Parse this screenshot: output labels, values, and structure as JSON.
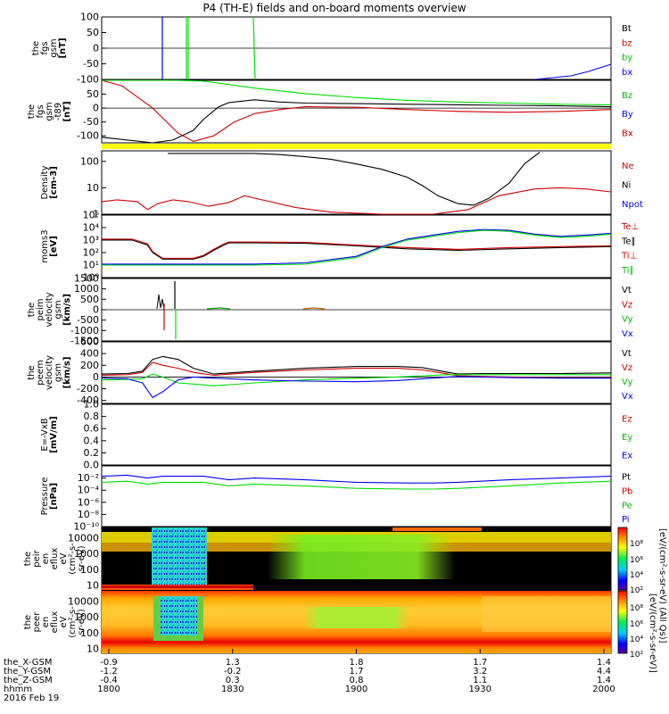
{
  "title": "P4 (TH-E) fields and on-board moments overview",
  "ephemeris": {
    "rows": [
      {
        "label": "the_X-GSM",
        "values": [
          "-0.9",
          "1.3",
          "1.8",
          "1.7",
          "1.4"
        ]
      },
      {
        "label": "the_Y-GSM",
        "values": [
          "-1.2",
          "-0.2",
          "1.7",
          "3.2",
          "4.4"
        ]
      },
      {
        "label": "the_Z-GSM",
        "values": [
          "-0.4",
          "0.3",
          "0.8",
          "1.1",
          "1.4"
        ]
      },
      {
        "label": "hhmm",
        "values": [
          "1800",
          "1830",
          "1900",
          "1930",
          "2000"
        ]
      }
    ],
    "date": "2016 Feb 19"
  },
  "colors": {
    "black": "#000000",
    "red": "#cc0000",
    "green": "#00dd00",
    "blue": "#0000ff",
    "yellow": "#ffff00"
  },
  "chart_data": [
    {
      "type": "line",
      "ylabel": [
        "the",
        "fgs",
        "gsm",
        "[nT]"
      ],
      "yticks": [
        "100",
        "50",
        "0",
        "-50",
        "-100"
      ],
      "ylim": [
        -100,
        100
      ],
      "legend": [
        "Bt",
        "bz",
        "by",
        "bx"
      ]
    },
    {
      "type": "line",
      "ylabel": [
        "the",
        "fgs",
        "gsm",
        "-t89",
        "[nT]"
      ],
      "yticks": [
        "50",
        "0",
        "-50",
        "-100"
      ],
      "ylim": [
        -125,
        100
      ],
      "legend": [
        "Bz",
        "By",
        "Bx"
      ],
      "series": [
        {
          "color": "black",
          "x": [
            0,
            0.1,
            0.14,
            0.18,
            0.2,
            0.23,
            0.25,
            0.3,
            0.35,
            0.4,
            0.5,
            0.6,
            0.7,
            0.8,
            0.9,
            1
          ],
          "y": [
            -105,
            -125,
            -115,
            -80,
            -40,
            5,
            20,
            30,
            22,
            18,
            16,
            14,
            12,
            10,
            8,
            5
          ]
        },
        {
          "color": "red",
          "x": [
            0,
            0.04,
            0.1,
            0.15,
            0.18,
            0.22,
            0.26,
            0.3,
            0.35,
            0.4,
            0.5,
            0.6,
            0.7,
            0.8,
            0.9,
            1
          ],
          "y": [
            100,
            80,
            0,
            -90,
            -120,
            -100,
            -50,
            -20,
            -5,
            5,
            3,
            -5,
            -12,
            -15,
            -12,
            -5
          ]
        },
        {
          "color": "green",
          "x": [
            0,
            0.05,
            0.1,
            0.15,
            0.2,
            0.25,
            0.3,
            0.4,
            0.5,
            0.6,
            0.7,
            0.8,
            0.9,
            1
          ],
          "y": [
            100,
            100,
            100,
            100,
            97,
            85,
            72,
            52,
            38,
            28,
            22,
            18,
            14,
            12
          ]
        }
      ]
    },
    {
      "type": "line",
      "ylabel": [
        "Density",
        "[cm-3]"
      ],
      "yscale": "log",
      "ytick_values": [
        1,
        10,
        100
      ],
      "yticks": [
        "1",
        "10",
        "100"
      ],
      "ylim": [
        1,
        250
      ],
      "legend": [
        "Ne",
        "Ni",
        "Npot"
      ],
      "series": [
        {
          "color": "black",
          "x": [
            0.13,
            0.3,
            0.35,
            0.4,
            0.45,
            0.5,
            0.55,
            0.6,
            0.63,
            0.66,
            0.7,
            0.73,
            0.76,
            0.8,
            0.83,
            0.86
          ],
          "y": [
            200,
            200,
            180,
            150,
            120,
            80,
            50,
            25,
            12,
            5,
            2.5,
            2.2,
            4,
            15,
            80,
            220
          ]
        },
        {
          "color": "red",
          "x": [
            0,
            0.03,
            0.07,
            0.09,
            0.11,
            0.14,
            0.17,
            0.21,
            0.25,
            0.28,
            0.33,
            0.38,
            0.45,
            0.55,
            0.65,
            0.72,
            0.78,
            0.85,
            0.9,
            0.95,
            1
          ],
          "y": [
            3,
            3.5,
            3,
            1.5,
            2.5,
            3.5,
            3,
            2,
            2.8,
            5,
            3,
            1.8,
            1.2,
            1,
            1,
            1.5,
            5,
            9,
            10,
            9,
            7
          ]
        }
      ]
    },
    {
      "type": "line",
      "ylabel": [
        "moms3",
        "[eV]"
      ],
      "yscale": "log",
      "ytick_values": [
        1,
        10,
        100,
        1000,
        10000,
        100000
      ],
      "yticks": [
        "10⁰",
        "10¹",
        "10²",
        "10³",
        "10⁴",
        "10⁵"
      ],
      "ylim": [
        1,
        100000
      ],
      "legend": [
        "Te⊥",
        "Te∥",
        "Ti⊥",
        "Ti∥"
      ],
      "series": [
        {
          "color": "black",
          "x": [
            0,
            0.06,
            0.09,
            0.1,
            0.12,
            0.18,
            0.2,
            0.22,
            0.24,
            0.25,
            0.3,
            0.4,
            0.5,
            0.6,
            0.7,
            0.8,
            0.9,
            1
          ],
          "y": [
            1000,
            1000,
            400,
            100,
            30,
            30,
            50,
            150,
            400,
            600,
            600,
            550,
            350,
            200,
            150,
            200,
            250,
            300
          ]
        },
        {
          "color": "red",
          "x": [
            0,
            0.06,
            0.09,
            0.1,
            0.12,
            0.18,
            0.2,
            0.22,
            0.24,
            0.25,
            0.3,
            0.4,
            0.5,
            0.6,
            0.7,
            0.8,
            0.9,
            1
          ],
          "y": [
            1200,
            1200,
            500,
            120,
            35,
            35,
            60,
            180,
            500,
            700,
            700,
            650,
            400,
            250,
            180,
            250,
            300,
            350
          ]
        },
        {
          "color": "blue",
          "x": [
            0,
            0.1,
            0.22,
            0.3,
            0.4,
            0.5,
            0.55,
            0.6,
            0.65,
            0.7,
            0.75,
            0.8,
            0.85,
            0.9,
            0.95,
            1
          ],
          "y": [
            12,
            12,
            12,
            12,
            15,
            50,
            300,
            1200,
            2500,
            5000,
            7000,
            6000,
            3000,
            2000,
            2500,
            3500
          ]
        },
        {
          "color": "green",
          "x": [
            0,
            0.1,
            0.22,
            0.3,
            0.4,
            0.5,
            0.55,
            0.6,
            0.65,
            0.7,
            0.75,
            0.8,
            0.85,
            0.9,
            0.95,
            1
          ],
          "y": [
            10,
            10,
            10,
            10,
            12,
            40,
            250,
            1000,
            2000,
            4000,
            6000,
            5000,
            2500,
            1600,
            2000,
            3000
          ]
        }
      ]
    },
    {
      "type": "line",
      "ylabel": [
        "the",
        "peim",
        "velocity",
        "gsm",
        "[km/s]"
      ],
      "yticks": [
        "1500",
        "1000",
        "500",
        "0",
        "-500",
        "-1000",
        "-1500"
      ],
      "ylim": [
        -1500,
        1500
      ],
      "legend": [
        "Vt",
        "Vz",
        "Vy",
        "Vx"
      ]
    },
    {
      "type": "line",
      "ylabel": [
        "the",
        "peem",
        "velocity",
        "gsm",
        "[km/s]"
      ],
      "yticks": [
        "600",
        "400",
        "200",
        "0",
        "-200",
        "-400"
      ],
      "ylim": [
        -450,
        600
      ],
      "legend": [
        "Vt",
        "Vz",
        "Vy",
        "Vx"
      ],
      "series": [
        {
          "color": "black",
          "x": [
            0,
            0.05,
            0.08,
            0.1,
            0.12,
            0.15,
            0.18,
            0.22,
            0.3,
            0.4,
            0.5,
            0.58,
            0.63,
            0.68,
            0.7,
            0.75,
            0.8,
            0.9,
            1
          ],
          "y": [
            50,
            60,
            100,
            300,
            350,
            300,
            150,
            50,
            100,
            150,
            180,
            180,
            160,
            80,
            50,
            60,
            60,
            60,
            70
          ]
        },
        {
          "color": "red",
          "x": [
            0,
            0.05,
            0.08,
            0.1,
            0.12,
            0.15,
            0.18,
            0.22,
            0.3,
            0.4,
            0.5,
            0.58,
            0.63,
            0.68,
            0.7,
            0.75,
            0.8,
            0.9,
            1
          ],
          "y": [
            30,
            40,
            80,
            250,
            200,
            150,
            80,
            30,
            80,
            120,
            150,
            150,
            120,
            50,
            20,
            10,
            0,
            -10,
            -10
          ]
        },
        {
          "color": "green",
          "x": [
            0,
            0.05,
            0.08,
            0.1,
            0.12,
            0.15,
            0.18,
            0.22,
            0.3,
            0.4,
            0.5,
            0.58,
            0.63,
            0.68,
            0.7,
            0.75,
            0.8,
            0.9,
            1
          ],
          "y": [
            -50,
            -40,
            -30,
            50,
            0,
            -100,
            -120,
            -150,
            -100,
            -50,
            -20,
            0,
            20,
            40,
            40,
            40,
            40,
            40,
            40
          ]
        },
        {
          "color": "blue",
          "x": [
            0,
            0.05,
            0.08,
            0.1,
            0.12,
            0.15,
            0.18,
            0.22,
            0.3,
            0.4,
            0.5,
            0.58,
            0.63,
            0.68,
            0.7,
            0.75,
            0.8,
            0.9,
            1
          ],
          "y": [
            -20,
            -30,
            -100,
            -350,
            -250,
            -50,
            0,
            -20,
            -50,
            -70,
            -80,
            -60,
            -30,
            0,
            10,
            0,
            -10,
            -20,
            -20
          ]
        }
      ]
    },
    {
      "type": "line",
      "ylabel": [
        "E=-VxB",
        "[mV/m]"
      ],
      "yticks": [
        "1.0",
        "0.8",
        "0.6",
        "0.4",
        "0.2",
        "0.0"
      ],
      "ylim": [
        0,
        1
      ],
      "legend": [
        "Ez",
        "Ey",
        "Ex"
      ]
    },
    {
      "type": "line",
      "ylabel": [
        "Pressure",
        "[nPa]"
      ],
      "yscale": "log",
      "ytick_values": [
        1e-10,
        1e-08,
        1e-06,
        0.0001,
        0.01
      ],
      "yticks": [
        "10⁻¹⁰",
        "10⁻⁸",
        "10⁻⁶",
        "10⁻⁴",
        "10⁻²"
      ],
      "ylim": [
        1e-10,
        1
      ],
      "legend": [
        "Pt",
        "Pb",
        "Pe",
        "Pi"
      ],
      "series": [
        {
          "color": "blue",
          "x": [
            0,
            0.05,
            0.09,
            0.12,
            0.15,
            0.2,
            0.25,
            0.3,
            0.4,
            0.5,
            0.6,
            0.65,
            0.7,
            0.8,
            0.9,
            1
          ],
          "y": [
            0.02,
            0.03,
            0.01,
            0.02,
            0.02,
            0.02,
            0.005,
            0.01,
            0.005,
            0.002,
            0.0015,
            0.0015,
            0.002,
            0.005,
            0.01,
            0.02
          ]
        },
        {
          "color": "green",
          "x": [
            0,
            0.05,
            0.09,
            0.12,
            0.15,
            0.2,
            0.25,
            0.3,
            0.4,
            0.5,
            0.6,
            0.65,
            0.7,
            0.8,
            0.9,
            1
          ],
          "y": [
            0.002,
            0.003,
            0.001,
            0.002,
            0.002,
            0.002,
            0.0005,
            0.001,
            0.0005,
            0.0002,
            0.00015,
            0.00015,
            0.0002,
            0.0005,
            0.0015,
            0.003
          ]
        }
      ]
    },
    {
      "type": "heatmap",
      "ylabel": [
        "the",
        "peir",
        "en",
        "eflux",
        "eV",
        "(cm²-s-",
        "sr-eV)"
      ],
      "yticks": [
        "10000",
        "1000",
        "100",
        "10"
      ],
      "yscale": "log",
      "ylim": [
        7,
        30000
      ]
    },
    {
      "type": "heatmap",
      "ylabel": [
        "the",
        "peer",
        "en",
        "eflux",
        "eV",
        "(cm²-s-",
        "sr-eV)"
      ],
      "yticks": [
        "10000",
        "1000",
        "100",
        "10"
      ],
      "yscale": "log",
      "ylim": [
        7,
        30000
      ]
    }
  ],
  "colorbars": [
    {
      "label": "[eV/(cm²-s-sr-eV) (All Qs)]",
      "ticks": [
        "10⁸",
        "10⁶",
        "10⁴",
        "10²"
      ]
    },
    {
      "label": "[eV/(cm²-s-sr-eV)]",
      "ticks": [
        "10⁸",
        "10⁶",
        "10⁴",
        "10²"
      ]
    }
  ]
}
